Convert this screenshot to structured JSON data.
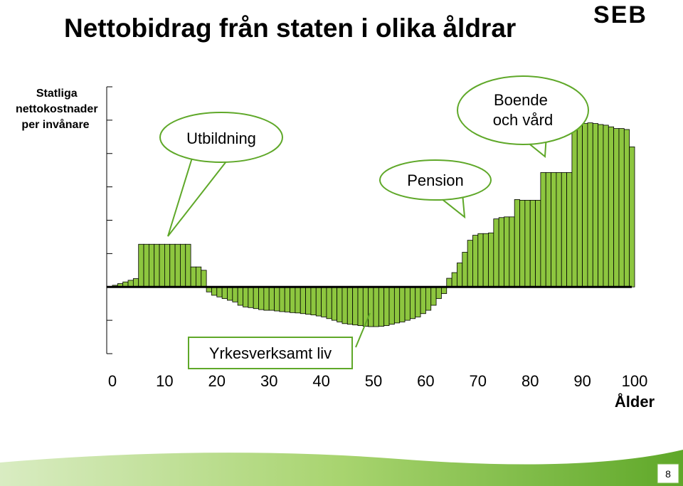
{
  "chart_data": {
    "type": "histogram",
    "title": "Nettobidrag från staten i olika åldrar",
    "y_label_lines": [
      "Statliga",
      "nettokostnader",
      "per invånare"
    ],
    "x_label": "Ålder",
    "bins": [
      0,
      1,
      2,
      3,
      4,
      5,
      6,
      7,
      8,
      9,
      10,
      11,
      12,
      13,
      14,
      15,
      16,
      17,
      18,
      19,
      20,
      21,
      22,
      23,
      24,
      25,
      26,
      27,
      28,
      29,
      30,
      31,
      32,
      33,
      34,
      35,
      36,
      37,
      38,
      39,
      40,
      41,
      42,
      43,
      44,
      45,
      46,
      47,
      48,
      49,
      50,
      51,
      52,
      53,
      54,
      55,
      56,
      57,
      58,
      59,
      60,
      61,
      62,
      63,
      64,
      65,
      66,
      67,
      68,
      69,
      70,
      71,
      72,
      73,
      74,
      75,
      76,
      77,
      78,
      79,
      80,
      81,
      82,
      83,
      84,
      85,
      86,
      87,
      88,
      89,
      90,
      91,
      92,
      93,
      94,
      95,
      96,
      97,
      98,
      99,
      100
    ],
    "values": [
      0.05,
      0.1,
      0.15,
      0.2,
      0.25,
      1.28,
      1.28,
      1.28,
      1.28,
      1.28,
      1.28,
      1.28,
      1.28,
      1.28,
      1.28,
      0.6,
      0.6,
      0.5,
      -0.15,
      -0.25,
      -0.3,
      -0.35,
      -0.4,
      -0.45,
      -0.55,
      -0.6,
      -0.62,
      -0.65,
      -0.68,
      -0.7,
      -0.7,
      -0.72,
      -0.74,
      -0.75,
      -0.77,
      -0.78,
      -0.8,
      -0.82,
      -0.84,
      -0.87,
      -0.9,
      -0.95,
      -1.0,
      -1.05,
      -1.1,
      -1.12,
      -1.14,
      -1.16,
      -1.18,
      -1.19,
      -1.19,
      -1.18,
      -1.16,
      -1.12,
      -1.08,
      -1.05,
      -1.0,
      -0.95,
      -0.9,
      -0.8,
      -0.7,
      -0.55,
      -0.35,
      -0.2,
      0.26,
      0.43,
      0.72,
      1.04,
      1.4,
      1.55,
      1.6,
      1.6,
      1.62,
      2.04,
      2.08,
      2.1,
      2.1,
      2.62,
      2.6,
      2.6,
      2.6,
      2.6,
      3.43,
      3.43,
      3.43,
      3.43,
      3.43,
      3.43,
      4.87,
      4.9,
      4.9,
      4.92,
      4.9,
      4.87,
      4.85,
      4.8,
      4.75,
      4.75,
      4.72,
      4.2
    ],
    "color": "#8dc63f",
    "xlim": [
      0,
      100
    ],
    "xticks": [
      0,
      10,
      20,
      30,
      40,
      50,
      60,
      70,
      80,
      90,
      100
    ],
    "ylim": [
      -2,
      6
    ],
    "yticks": [
      -2,
      -1,
      0,
      1,
      2,
      3,
      4,
      5,
      6
    ],
    "annotations": [
      {
        "lines": [
          "Utbildning"
        ]
      },
      {
        "lines": [
          "Boende",
          "och vård"
        ]
      },
      {
        "lines": [
          "Pension"
        ]
      },
      {
        "lines": [
          "Yrkesverksamt liv"
        ]
      }
    ]
  },
  "logo": "SEB",
  "page_number": "8"
}
